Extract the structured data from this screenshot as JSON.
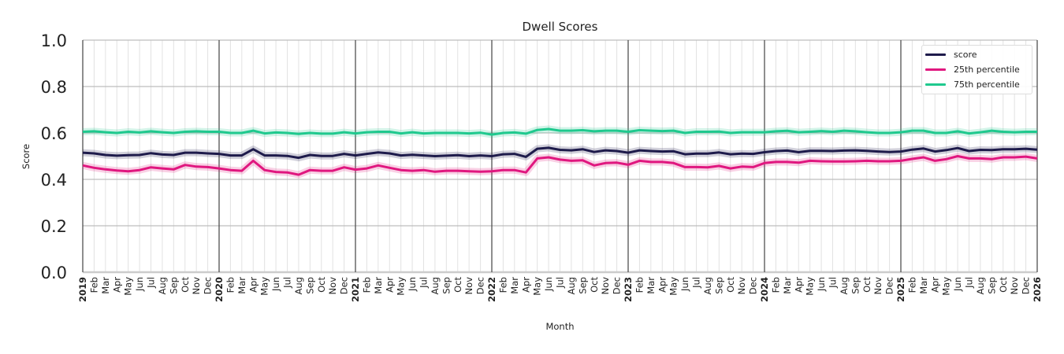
{
  "chart_data": {
    "type": "line",
    "title": "Dwell Scores",
    "xlabel": "Month",
    "ylabel": "Score",
    "ylim": [
      0,
      1.0
    ],
    "yticks": [
      "0.0",
      "0.2",
      "0.4",
      "0.6",
      "0.8",
      "1.0"
    ],
    "grid": true,
    "legend_position": "top-right",
    "x": [
      "2019",
      "Feb",
      "Mar",
      "Apr",
      "May",
      "Jun",
      "Jul",
      "Aug",
      "Sep",
      "Oct",
      "Nov",
      "Dec",
      "2020",
      "Feb",
      "Mar",
      "Apr",
      "May",
      "Jun",
      "Jul",
      "Aug",
      "Sep",
      "Oct",
      "Nov",
      "Dec",
      "2021",
      "Feb",
      "Mar",
      "Apr",
      "May",
      "Jun",
      "Jul",
      "Aug",
      "Sep",
      "Oct",
      "Nov",
      "Dec",
      "2022",
      "Feb",
      "Mar",
      "Apr",
      "May",
      "Jun",
      "Jul",
      "Aug",
      "Sep",
      "Oct",
      "Nov",
      "Dec",
      "2023",
      "Feb",
      "Mar",
      "Apr",
      "May",
      "Jun",
      "Jul",
      "Aug",
      "Sep",
      "Oct",
      "Nov",
      "Dec",
      "2024",
      "Feb",
      "Mar",
      "Apr",
      "May",
      "Jun",
      "Jul",
      "Aug",
      "Sep",
      "Oct",
      "Nov",
      "Dec",
      "2025",
      "Feb",
      "Mar",
      "Apr",
      "May",
      "Jun",
      "Jul",
      "Aug",
      "Sep",
      "Oct",
      "Nov",
      "Dec",
      "2026"
    ],
    "series": [
      {
        "name": "score",
        "color": "#1e1b4b",
        "values": [
          0.515,
          0.512,
          0.505,
          0.502,
          0.504,
          0.505,
          0.513,
          0.507,
          0.505,
          0.515,
          0.515,
          0.512,
          0.51,
          0.503,
          0.503,
          0.53,
          0.503,
          0.503,
          0.501,
          0.493,
          0.505,
          0.501,
          0.501,
          0.51,
          0.503,
          0.51,
          0.516,
          0.512,
          0.503,
          0.506,
          0.503,
          0.5,
          0.502,
          0.504,
          0.5,
          0.503,
          0.5,
          0.508,
          0.51,
          0.497,
          0.532,
          0.536,
          0.527,
          0.525,
          0.53,
          0.518,
          0.525,
          0.522,
          0.515,
          0.525,
          0.522,
          0.52,
          0.521,
          0.508,
          0.511,
          0.511,
          0.516,
          0.508,
          0.511,
          0.51,
          0.517,
          0.522,
          0.524,
          0.517,
          0.523,
          0.523,
          0.522,
          0.524,
          0.525,
          0.523,
          0.52,
          0.518,
          0.52,
          0.528,
          0.533,
          0.52,
          0.526,
          0.535,
          0.522,
          0.527,
          0.526,
          0.53,
          0.53,
          0.532,
          0.528
        ]
      },
      {
        "name": "25th percentile",
        "color": "#e0177f",
        "values": [
          0.46,
          0.45,
          0.443,
          0.438,
          0.435,
          0.44,
          0.452,
          0.447,
          0.443,
          0.462,
          0.455,
          0.453,
          0.447,
          0.44,
          0.437,
          0.48,
          0.44,
          0.432,
          0.43,
          0.42,
          0.44,
          0.437,
          0.437,
          0.452,
          0.442,
          0.447,
          0.46,
          0.45,
          0.44,
          0.437,
          0.44,
          0.433,
          0.437,
          0.437,
          0.435,
          0.433,
          0.435,
          0.44,
          0.44,
          0.43,
          0.49,
          0.495,
          0.485,
          0.48,
          0.482,
          0.46,
          0.47,
          0.472,
          0.463,
          0.48,
          0.475,
          0.475,
          0.47,
          0.453,
          0.453,
          0.452,
          0.458,
          0.447,
          0.455,
          0.453,
          0.47,
          0.475,
          0.475,
          0.472,
          0.48,
          0.478,
          0.477,
          0.477,
          0.478,
          0.48,
          0.478,
          0.478,
          0.48,
          0.488,
          0.495,
          0.48,
          0.487,
          0.5,
          0.49,
          0.49,
          0.487,
          0.495,
          0.495,
          0.498,
          0.49
        ]
      },
      {
        "name": "75th percentile",
        "color": "#1fc98e",
        "values": [
          0.605,
          0.607,
          0.603,
          0.6,
          0.605,
          0.602,
          0.607,
          0.603,
          0.6,
          0.605,
          0.607,
          0.605,
          0.605,
          0.6,
          0.6,
          0.61,
          0.598,
          0.602,
          0.6,
          0.596,
          0.6,
          0.597,
          0.597,
          0.603,
          0.598,
          0.603,
          0.605,
          0.605,
          0.598,
          0.603,
          0.598,
          0.6,
          0.6,
          0.6,
          0.598,
          0.601,
          0.593,
          0.6,
          0.602,
          0.597,
          0.613,
          0.617,
          0.61,
          0.61,
          0.612,
          0.607,
          0.61,
          0.61,
          0.605,
          0.612,
          0.61,
          0.608,
          0.61,
          0.6,
          0.605,
          0.605,
          0.606,
          0.6,
          0.603,
          0.603,
          0.603,
          0.607,
          0.609,
          0.603,
          0.605,
          0.608,
          0.605,
          0.61,
          0.607,
          0.603,
          0.6,
          0.6,
          0.603,
          0.61,
          0.61,
          0.6,
          0.6,
          0.607,
          0.598,
          0.603,
          0.61,
          0.605,
          0.603,
          0.605,
          0.605
        ]
      }
    ]
  }
}
